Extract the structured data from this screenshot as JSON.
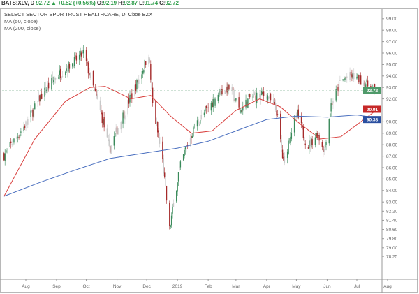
{
  "header": {
    "symbol": "BATS:XLV, D",
    "last": "92.72",
    "change": "+0.52 (+0.56%)",
    "o_label": "O:",
    "o": "92.19",
    "h_label": "H:",
    "h": "92.87",
    "l_label": "L:",
    "l": "91.74",
    "c_label": "C:",
    "c": "92.72",
    "up_arrow": "▲"
  },
  "legend": {
    "title": "SELECT SECTOR SPDR TRUST HEALTHCARE, D, Cboe BZX",
    "ma50": "MA (50, close)",
    "ma200": "MA (200, close)"
  },
  "chart_data": {
    "type": "candlestick",
    "title": "SELECT SECTOR SPDR TRUST HEALTHCARE, D, Cboe BZX",
    "x_tick_labels": [
      "Aug",
      "Sep",
      "Oct",
      "Nov",
      "Dec",
      "2019",
      "Feb",
      "Mar",
      "Apr",
      "May",
      "Jun",
      "Jul",
      "Aug"
    ],
    "x_tick_dates": [
      "2018-08-01",
      "2018-09-01",
      "2018-10-01",
      "2018-11-01",
      "2018-12-01",
      "2019-01-01",
      "2019-02-01",
      "2019-03-01",
      "2019-04-01",
      "2019-05-01",
      "2019-06-01",
      "2019-07-01",
      "2019-08-01"
    ],
    "y_tick_labels": [
      "99.00",
      "98.00",
      "97.00",
      "96.00",
      "95.00",
      "94.00",
      "93.00",
      "92.00",
      "90.00",
      "89.00",
      "88.00",
      "87.00",
      "86.00",
      "85.00",
      "84.00",
      "83.00",
      "82.20",
      "81.40",
      "80.60",
      "79.80",
      "79.00",
      "78.25"
    ],
    "ylim": [
      76.2,
      100.4
    ],
    "xlim": [
      "2018-07-10",
      "2019-08-20"
    ],
    "price_path": [
      [
        "2018-07-10",
        87.1
      ],
      [
        "2018-08-01",
        89.8
      ],
      [
        "2018-08-16",
        92.2
      ],
      [
        "2018-09-01",
        94.0
      ],
      [
        "2018-09-18",
        95.2
      ],
      [
        "2018-09-28",
        96.0
      ],
      [
        "2018-10-08",
        93.0
      ],
      [
        "2018-10-18",
        90.0
      ],
      [
        "2018-10-24",
        87.5
      ],
      [
        "2018-11-01",
        89.3
      ],
      [
        "2018-11-14",
        92.0
      ],
      [
        "2018-11-24",
        93.9
      ],
      [
        "2018-12-03",
        96.0
      ],
      [
        "2018-12-07",
        91.5
      ],
      [
        "2018-12-17",
        86.6
      ],
      [
        "2018-12-24",
        80.6
      ],
      [
        "2019-01-02",
        85.5
      ],
      [
        "2019-01-09",
        87.6
      ],
      [
        "2019-01-19",
        89.7
      ],
      [
        "2019-02-01",
        91.2
      ],
      [
        "2019-02-13",
        92.7
      ],
      [
        "2019-02-23",
        93.0
      ],
      [
        "2019-03-05",
        90.9
      ],
      [
        "2019-03-15",
        92.1
      ],
      [
        "2019-04-01",
        92.4
      ],
      [
        "2019-04-11",
        90.9
      ],
      [
        "2019-04-18",
        86.3
      ],
      [
        "2019-04-25",
        89.0
      ],
      [
        "2019-05-02",
        90.6
      ],
      [
        "2019-05-12",
        87.8
      ],
      [
        "2019-05-22",
        89.0
      ],
      [
        "2019-05-29",
        87.5
      ],
      [
        "2019-06-05",
        91.5
      ],
      [
        "2019-06-15",
        93.6
      ],
      [
        "2019-06-26",
        94.0
      ],
      [
        "2019-07-06",
        93.6
      ],
      [
        "2019-07-19",
        92.72
      ]
    ],
    "series": [
      {
        "name": "MA (50, close)",
        "color": "#d9413f",
        "value_last": "90.91",
        "points": [
          [
            "2018-07-10",
            83.5
          ],
          [
            "2018-08-10",
            88.5
          ],
          [
            "2018-09-10",
            91.8
          ],
          [
            "2018-10-05",
            93.0
          ],
          [
            "2018-10-20",
            93.1
          ],
          [
            "2018-11-15",
            92.0
          ],
          [
            "2018-12-05",
            92.3
          ],
          [
            "2018-12-25",
            90.5
          ],
          [
            "2019-01-15",
            89.0
          ],
          [
            "2019-02-05",
            89.2
          ],
          [
            "2019-03-01",
            91.0
          ],
          [
            "2019-03-25",
            92.0
          ],
          [
            "2019-04-15",
            91.3
          ],
          [
            "2019-05-05",
            89.8
          ],
          [
            "2019-05-25",
            88.5
          ],
          [
            "2019-06-15",
            88.7
          ],
          [
            "2019-07-05",
            90.0
          ],
          [
            "2019-07-19",
            90.91
          ]
        ]
      },
      {
        "name": "MA (200, close)",
        "color": "#4a6fbf",
        "value_last": "90.38",
        "points": [
          [
            "2018-07-10",
            83.5
          ],
          [
            "2018-08-15",
            84.7
          ],
          [
            "2018-09-20",
            85.8
          ],
          [
            "2018-10-25",
            86.8
          ],
          [
            "2018-12-01",
            87.3
          ],
          [
            "2019-01-01",
            87.7
          ],
          [
            "2019-02-01",
            88.3
          ],
          [
            "2019-03-01",
            89.2
          ],
          [
            "2019-04-01",
            90.2
          ],
          [
            "2019-05-01",
            90.5
          ],
          [
            "2019-06-01",
            90.4
          ],
          [
            "2019-07-01",
            90.6
          ],
          [
            "2019-07-19",
            90.38
          ]
        ]
      }
    ],
    "last_price": "92.72",
    "colors": {
      "up": "#3a8a5a",
      "down": "#a52a2a",
      "neutral": "#c8c8c8",
      "last": "#4f9a6a",
      "ma50_tag": "#c62828",
      "ma200_tag": "#2a4fa0"
    }
  }
}
